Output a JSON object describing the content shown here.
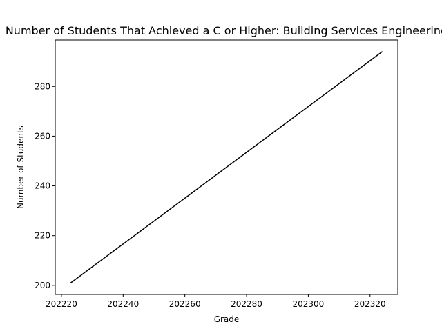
{
  "chart_data": {
    "type": "line",
    "title": "Number of Students That Achieved a C or Higher: Building Services Engineering",
    "xlabel": "Grade",
    "ylabel": "Number of Students",
    "x": [
      202223,
      202324
    ],
    "series": [
      {
        "values": [
          201,
          294
        ],
        "color": "#000000"
      }
    ],
    "xlim": [
      202218,
      202329
    ],
    "ylim": [
      196.35,
      298.65
    ],
    "xticks": [
      202220,
      202240,
      202260,
      202280,
      202300,
      202320
    ],
    "yticks": [
      200,
      220,
      240,
      260,
      280
    ],
    "grid": false
  }
}
